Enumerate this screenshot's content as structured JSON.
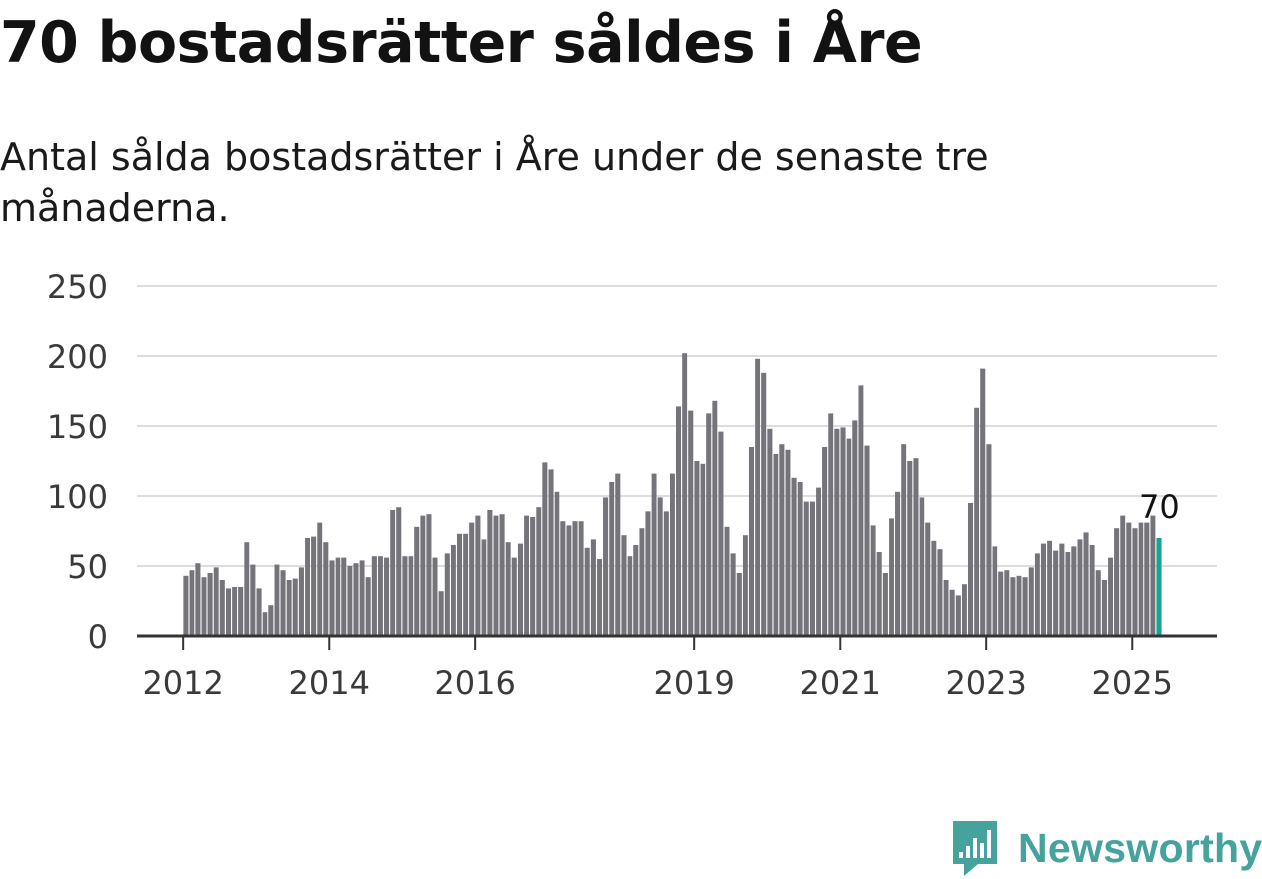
{
  "header": {
    "title": "70 bostadsrätter såldes i Åre",
    "subtitle": "Antal sålda bostadsrätter i Åre under de senaste tre månaderna."
  },
  "brand": {
    "name": "Newsworthy",
    "icon": "newsworthy-logo-icon",
    "color": "#45a29c"
  },
  "colors": {
    "bar": "#75747a",
    "highlight": "#16a395",
    "grid": "#dddddd",
    "axis": "#333333"
  },
  "chart_data": {
    "type": "bar",
    "title": "70 bostadsrätter såldes i Åre",
    "subtitle": "Antal sålda bostadsrätter i Åre under de senaste tre månaderna.",
    "xlabel": "",
    "ylabel": "",
    "ylim": [
      0,
      250
    ],
    "yticks": [
      0,
      50,
      100,
      150,
      200,
      250
    ],
    "grid": true,
    "x_start": "2012-01",
    "x_interval": "month",
    "xlim": [
      "2011-05-15",
      "2026-03-01"
    ],
    "xticks": [
      {
        "label": "2012",
        "date": "2012-01-01"
      },
      {
        "label": "2014",
        "date": "2014-01-01"
      },
      {
        "label": "2016",
        "date": "2016-01-01"
      },
      {
        "label": "2019",
        "date": "2019-01-01"
      },
      {
        "label": "2021",
        "date": "2021-01-01"
      },
      {
        "label": "2023",
        "date": "2023-01-01"
      },
      {
        "label": "2025",
        "date": "2025-01-01"
      }
    ],
    "values": [
      43,
      47,
      52,
      42,
      45,
      49,
      40,
      34,
      35,
      35,
      67,
      51,
      34,
      17,
      22,
      51,
      47,
      40,
      41,
      49,
      70,
      71,
      81,
      67,
      54,
      56,
      56,
      50,
      52,
      54,
      42,
      57,
      57,
      56,
      90,
      92,
      57,
      57,
      78,
      86,
      87,
      56,
      32,
      59,
      65,
      73,
      73,
      81,
      86,
      69,
      90,
      86,
      87,
      67,
      56,
      66,
      86,
      85,
      92,
      124,
      119,
      103,
      82,
      79,
      82,
      82,
      63,
      69,
      55,
      99,
      110,
      116,
      72,
      57,
      65,
      77,
      89,
      116,
      99,
      89,
      116,
      164,
      202,
      161,
      125,
      123,
      159,
      168,
      146,
      78,
      59,
      45,
      72,
      135,
      198,
      188,
      148,
      130,
      137,
      133,
      113,
      110,
      96,
      96,
      106,
      135,
      159,
      148,
      149,
      141,
      154,
      179,
      136,
      79,
      60,
      45,
      84,
      103,
      137,
      125,
      127,
      99,
      81,
      68,
      62,
      40,
      33,
      29,
      37,
      95,
      163,
      191,
      137,
      64,
      46,
      47,
      42,
      43,
      42,
      49,
      59,
      66,
      68,
      61,
      66,
      60,
      64,
      69,
      74,
      65,
      47,
      40,
      56,
      77,
      86,
      81,
      77,
      81,
      81,
      86,
      70
    ],
    "highlight_last": true,
    "last_value_label": "70"
  }
}
